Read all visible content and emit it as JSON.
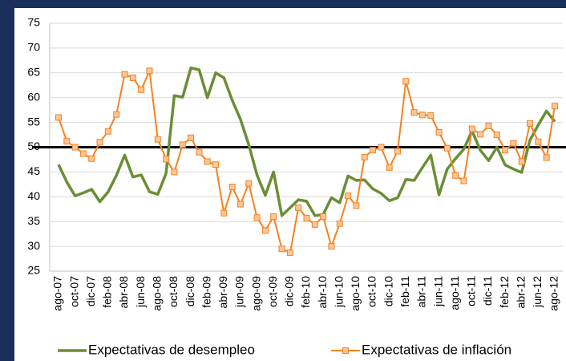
{
  "chart_data": {
    "type": "line",
    "categories": [
      "ago-07",
      null,
      "oct-07",
      null,
      "dic-07",
      null,
      "feb-08",
      null,
      "abr-08",
      null,
      "jun-08",
      null,
      "ago-08",
      null,
      "oct-08",
      null,
      "dic-08",
      null,
      "feb-09",
      null,
      "abr-09",
      null,
      "jun-09",
      null,
      "ago-09",
      null,
      "oct-09",
      null,
      "dic-09",
      null,
      "feb-10",
      null,
      "abr-10",
      null,
      "jun-10",
      null,
      "ago-10",
      null,
      "oct-10",
      null,
      "dic-10",
      null,
      "feb-11",
      null,
      "abr-11",
      null,
      "jun-11",
      null,
      "ago-11",
      null,
      "oct-11",
      null,
      "dic-11",
      null,
      "feb-12",
      null,
      "abr-12",
      null,
      "jun-12",
      null,
      "ago-12"
    ],
    "series": [
      {
        "name": "Expectativas de desempleo",
        "color": "#6b8e35",
        "marker": false,
        "values": [
          46.5,
          43,
          40.2,
          40.8,
          41.5,
          39,
          41,
          44.3,
          48.4,
          44,
          44.4,
          41,
          40.5,
          44.7,
          60.4,
          60.1,
          66,
          65.6,
          60,
          65,
          64,
          59.5,
          55.6,
          50.5,
          44.4,
          40.3,
          45,
          36.2,
          37.8,
          39.4,
          39.1,
          36.2,
          36.4,
          39.8,
          38.8,
          44.2,
          43.3,
          43.4,
          41.6,
          40.7,
          39.2,
          39.8,
          43.5,
          43.3,
          45.9,
          48.4,
          40.4,
          45.6,
          47.7,
          49.6,
          53.3,
          49.4,
          47.3,
          50,
          46.4,
          45.6,
          44.9,
          51.4,
          54.5,
          57.3,
          55.2
        ]
      },
      {
        "name": "Expectativas de inflación",
        "color": "#f58220",
        "marker": true,
        "values": [
          56,
          51.2,
          50,
          48.7,
          47.7,
          51,
          53.2,
          56.6,
          64.7,
          64,
          61.6,
          65.4,
          51.6,
          47.6,
          45,
          50.5,
          51.9,
          49,
          47.1,
          46.5,
          36.7,
          42,
          38.5,
          42.7,
          35.8,
          33.2,
          36,
          29.5,
          28.7,
          37.8,
          35.7,
          34.4,
          36,
          30,
          34.6,
          40.2,
          38.2,
          48,
          49.4,
          50,
          45.9,
          49.2,
          63.3,
          57,
          56.5,
          56.4,
          53,
          49.8,
          44.3,
          43.2,
          53.7,
          52.6,
          54.3,
          52.5,
          49.4,
          50.8,
          47.1,
          54.8,
          51.1,
          47.9,
          58.3
        ]
      }
    ],
    "ylim": [
      25,
      75
    ],
    "yticks": [
      25,
      30,
      35,
      40,
      45,
      50,
      55,
      60,
      65,
      70,
      75
    ],
    "grid": true,
    "reference_line": 50,
    "legend": "bottom"
  }
}
